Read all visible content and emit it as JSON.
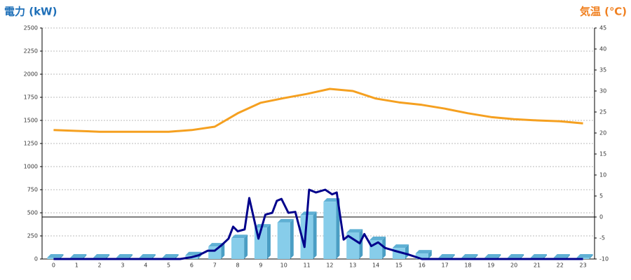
{
  "chart_data": {
    "type": "combo",
    "y_label": "電力 (kW)",
    "y2_label": "気温 (℃)",
    "categories": [
      "0",
      "1",
      "2",
      "3",
      "4",
      "5",
      "6",
      "7",
      "8",
      "9",
      "10",
      "11",
      "12",
      "13",
      "14",
      "15",
      "16",
      "17",
      "18",
      "19",
      "20",
      "21",
      "22",
      "23"
    ],
    "ylim": [
      0,
      2500
    ],
    "yticks": [
      0,
      250,
      500,
      750,
      1000,
      1250,
      1500,
      1750,
      2000,
      2250,
      2500
    ],
    "y2lim": [
      -10,
      45
    ],
    "y2ticks": [
      -10,
      -5,
      0,
      5,
      10,
      15,
      20,
      25,
      30,
      35,
      40,
      45
    ],
    "grid": true,
    "zero_line": true,
    "series": [
      {
        "type": "bar",
        "color": "#87cdea",
        "values": [
          15,
          15,
          15,
          15,
          15,
          15,
          40,
          135,
          225,
          340,
          395,
          475,
          620,
          285,
          205,
          120,
          60,
          15,
          15,
          15,
          15,
          15,
          15,
          15
        ]
      },
      {
        "type": "line",
        "color": "#00008b",
        "x": [
          0,
          1,
          2,
          3,
          4,
          5,
          5.5,
          6,
          6.3,
          6.7,
          7,
          7.3,
          7.6,
          7.8,
          8,
          8.3,
          8.5,
          8.9,
          9.2,
          9.5,
          9.7,
          9.9,
          10.2,
          10.5,
          10.9,
          11.1,
          11.4,
          11.8,
          12.1,
          12.3,
          12.6,
          12.8,
          13.3,
          13.5,
          13.8,
          14.1,
          14.4,
          14.8,
          15.4,
          16,
          17,
          18,
          19,
          20,
          21,
          22,
          23
        ],
        "values": [
          0,
          0,
          0,
          0,
          0,
          0,
          0,
          20,
          40,
          90,
          90,
          150,
          220,
          350,
          300,
          320,
          660,
          220,
          480,
          500,
          630,
          650,
          500,
          510,
          130,
          750,
          720,
          750,
          700,
          720,
          210,
          250,
          170,
          270,
          140,
          180,
          120,
          90,
          50,
          0,
          0,
          0,
          0,
          0,
          0,
          0,
          0
        ]
      },
      {
        "type": "line",
        "axis": "y2",
        "color": "#f5a020",
        "values": [
          20.7,
          20.5,
          20.3,
          20.3,
          20.3,
          20.3,
          20.7,
          21.5,
          24.7,
          27.2,
          28.3,
          29.3,
          30.5,
          30,
          28.2,
          27.3,
          26.7,
          25.8,
          24.7,
          23.8,
          23.3,
          23,
          22.8,
          22.3
        ]
      }
    ]
  }
}
